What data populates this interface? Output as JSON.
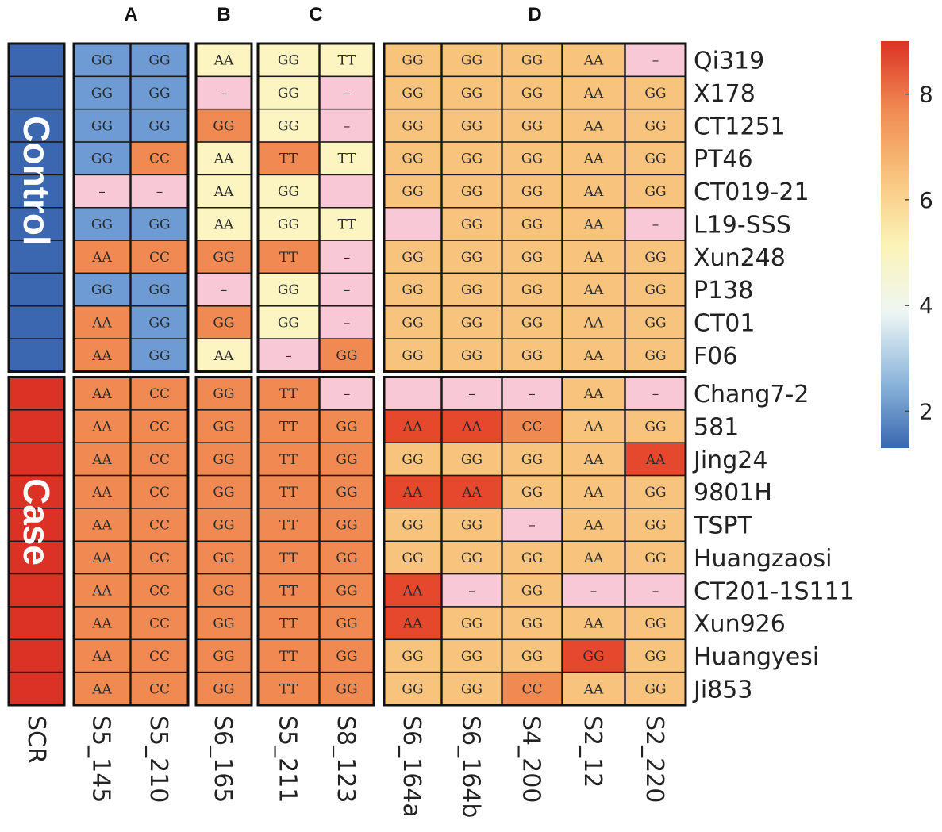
{
  "colors": {
    "blue": "#6f9bd4",
    "orange": "#f08a52",
    "yellow": "#fcf5c2",
    "pink": "#f9c8d6",
    "peach": "#f8c47d",
    "red": "#e5482d",
    "control": "#3a67b0",
    "case": "#dc3226"
  },
  "chart_data": {
    "type": "heatmap",
    "groups": [
      {
        "label": "A",
        "columns": [
          "S5_145",
          "S5_210"
        ]
      },
      {
        "label": "B",
        "columns": [
          "S6_165"
        ]
      },
      {
        "label": "C",
        "columns": [
          "S5_211",
          "S8_123"
        ]
      },
      {
        "label": "D",
        "columns": [
          "S6_164a",
          "S6_164b",
          "S4_200",
          "S2_12",
          "S2_220"
        ]
      }
    ],
    "scr_label": "SCR",
    "row_groups": [
      {
        "label": "Control",
        "rows": 10,
        "color": "control"
      },
      {
        "label": "Case",
        "rows": 10,
        "color": "case"
      }
    ],
    "rows": [
      {
        "name": "Qi319",
        "cells": [
          [
            "GG",
            "blue"
          ],
          [
            "GG",
            "blue"
          ],
          [
            "AA",
            "yellow"
          ],
          [
            "GG",
            "yellow"
          ],
          [
            "TT",
            "yellow"
          ],
          [
            "GG",
            "peach"
          ],
          [
            "GG",
            "peach"
          ],
          [
            "GG",
            "peach"
          ],
          [
            "AA",
            "peach"
          ],
          [
            "–",
            "pink"
          ]
        ]
      },
      {
        "name": "X178",
        "cells": [
          [
            "GG",
            "blue"
          ],
          [
            "GG",
            "blue"
          ],
          [
            "–",
            "pink"
          ],
          [
            "GG",
            "yellow"
          ],
          [
            "–",
            "pink"
          ],
          [
            "GG",
            "peach"
          ],
          [
            "GG",
            "peach"
          ],
          [
            "GG",
            "peach"
          ],
          [
            "AA",
            "peach"
          ],
          [
            "GG",
            "peach"
          ]
        ]
      },
      {
        "name": "CT1251",
        "cells": [
          [
            "GG",
            "blue"
          ],
          [
            "GG",
            "blue"
          ],
          [
            "GG",
            "orange"
          ],
          [
            "GG",
            "yellow"
          ],
          [
            "–",
            "pink"
          ],
          [
            "GG",
            "peach"
          ],
          [
            "GG",
            "peach"
          ],
          [
            "GG",
            "peach"
          ],
          [
            "AA",
            "peach"
          ],
          [
            "GG",
            "peach"
          ]
        ]
      },
      {
        "name": "PT46",
        "cells": [
          [
            "GG",
            "blue"
          ],
          [
            "CC",
            "orange"
          ],
          [
            "AA",
            "yellow"
          ],
          [
            "TT",
            "orange"
          ],
          [
            "TT",
            "yellow"
          ],
          [
            "GG",
            "peach"
          ],
          [
            "GG",
            "peach"
          ],
          [
            "GG",
            "peach"
          ],
          [
            "AA",
            "peach"
          ],
          [
            "GG",
            "peach"
          ]
        ]
      },
      {
        "name": "CT019-21",
        "cells": [
          [
            "–",
            "pink"
          ],
          [
            "–",
            "pink"
          ],
          [
            "AA",
            "yellow"
          ],
          [
            "GG",
            "yellow"
          ],
          [
            "",
            "pink"
          ],
          [
            "GG",
            "peach"
          ],
          [
            "GG",
            "peach"
          ],
          [
            "GG",
            "peach"
          ],
          [
            "AA",
            "peach"
          ],
          [
            "GG",
            "peach"
          ]
        ]
      },
      {
        "name": "L19-SSS",
        "cells": [
          [
            "GG",
            "blue"
          ],
          [
            "GG",
            "blue"
          ],
          [
            "AA",
            "yellow"
          ],
          [
            "GG",
            "yellow"
          ],
          [
            "TT",
            "yellow"
          ],
          [
            "",
            "pink"
          ],
          [
            "GG",
            "peach"
          ],
          [
            "GG",
            "peach"
          ],
          [
            "AA",
            "peach"
          ],
          [
            "–",
            "pink"
          ]
        ]
      },
      {
        "name": "Xun248",
        "cells": [
          [
            "AA",
            "orange"
          ],
          [
            "CC",
            "orange"
          ],
          [
            "GG",
            "orange"
          ],
          [
            "TT",
            "orange"
          ],
          [
            "–",
            "pink"
          ],
          [
            "GG",
            "peach"
          ],
          [
            "GG",
            "peach"
          ],
          [
            "GG",
            "peach"
          ],
          [
            "AA",
            "peach"
          ],
          [
            "GG",
            "peach"
          ]
        ]
      },
      {
        "name": "P138",
        "cells": [
          [
            "GG",
            "blue"
          ],
          [
            "GG",
            "blue"
          ],
          [
            "–",
            "pink"
          ],
          [
            "GG",
            "yellow"
          ],
          [
            "–",
            "pink"
          ],
          [
            "GG",
            "peach"
          ],
          [
            "GG",
            "peach"
          ],
          [
            "GG",
            "peach"
          ],
          [
            "AA",
            "peach"
          ],
          [
            "GG",
            "peach"
          ]
        ]
      },
      {
        "name": "CT01",
        "cells": [
          [
            "AA",
            "orange"
          ],
          [
            "GG",
            "blue"
          ],
          [
            "GG",
            "orange"
          ],
          [
            "GG",
            "yellow"
          ],
          [
            "–",
            "pink"
          ],
          [
            "GG",
            "peach"
          ],
          [
            "GG",
            "peach"
          ],
          [
            "GG",
            "peach"
          ],
          [
            "AA",
            "peach"
          ],
          [
            "GG",
            "peach"
          ]
        ]
      },
      {
        "name": "F06",
        "cells": [
          [
            "AA",
            "orange"
          ],
          [
            "GG",
            "blue"
          ],
          [
            "AA",
            "yellow"
          ],
          [
            "–",
            "pink"
          ],
          [
            "GG",
            "orange"
          ],
          [
            "GG",
            "peach"
          ],
          [
            "GG",
            "peach"
          ],
          [
            "GG",
            "peach"
          ],
          [
            "AA",
            "peach"
          ],
          [
            "GG",
            "peach"
          ]
        ]
      },
      {
        "name": "Chang7-2",
        "cells": [
          [
            "AA",
            "orange"
          ],
          [
            "CC",
            "orange"
          ],
          [
            "GG",
            "orange"
          ],
          [
            "TT",
            "orange"
          ],
          [
            "–",
            "pink"
          ],
          [
            "",
            "pink"
          ],
          [
            "–",
            "pink"
          ],
          [
            "–",
            "pink"
          ],
          [
            "AA",
            "peach"
          ],
          [
            "–",
            "pink"
          ]
        ]
      },
      {
        "name": "581",
        "cells": [
          [
            "AA",
            "orange"
          ],
          [
            "CC",
            "orange"
          ],
          [
            "GG",
            "orange"
          ],
          [
            "TT",
            "orange"
          ],
          [
            "GG",
            "orange"
          ],
          [
            "AA",
            "red"
          ],
          [
            "AA",
            "red"
          ],
          [
            "CC",
            "orange"
          ],
          [
            "AA",
            "peach"
          ],
          [
            "GG",
            "peach"
          ]
        ]
      },
      {
        "name": "Jing24",
        "cells": [
          [
            "AA",
            "orange"
          ],
          [
            "CC",
            "orange"
          ],
          [
            "GG",
            "orange"
          ],
          [
            "TT",
            "orange"
          ],
          [
            "GG",
            "orange"
          ],
          [
            "GG",
            "peach"
          ],
          [
            "GG",
            "peach"
          ],
          [
            "GG",
            "peach"
          ],
          [
            "AA",
            "peach"
          ],
          [
            "AA",
            "red"
          ]
        ]
      },
      {
        "name": "9801H",
        "cells": [
          [
            "AA",
            "orange"
          ],
          [
            "CC",
            "orange"
          ],
          [
            "GG",
            "orange"
          ],
          [
            "TT",
            "orange"
          ],
          [
            "GG",
            "orange"
          ],
          [
            "AA",
            "red"
          ],
          [
            "AA",
            "red"
          ],
          [
            "GG",
            "peach"
          ],
          [
            "AA",
            "peach"
          ],
          [
            "GG",
            "peach"
          ]
        ]
      },
      {
        "name": "TSPT",
        "cells": [
          [
            "AA",
            "orange"
          ],
          [
            "CC",
            "orange"
          ],
          [
            "GG",
            "orange"
          ],
          [
            "TT",
            "orange"
          ],
          [
            "GG",
            "orange"
          ],
          [
            "GG",
            "peach"
          ],
          [
            "GG",
            "peach"
          ],
          [
            "–",
            "pink"
          ],
          [
            "AA",
            "peach"
          ],
          [
            "GG",
            "peach"
          ]
        ]
      },
      {
        "name": "Huangzaosi",
        "cells": [
          [
            "AA",
            "orange"
          ],
          [
            "CC",
            "orange"
          ],
          [
            "GG",
            "orange"
          ],
          [
            "TT",
            "orange"
          ],
          [
            "GG",
            "orange"
          ],
          [
            "GG",
            "peach"
          ],
          [
            "GG",
            "peach"
          ],
          [
            "GG",
            "peach"
          ],
          [
            "AA",
            "peach"
          ],
          [
            "GG",
            "peach"
          ]
        ]
      },
      {
        "name": "CT201-1S111",
        "cells": [
          [
            "AA",
            "orange"
          ],
          [
            "CC",
            "orange"
          ],
          [
            "GG",
            "orange"
          ],
          [
            "TT",
            "orange"
          ],
          [
            "GG",
            "orange"
          ],
          [
            "AA",
            "red"
          ],
          [
            "–",
            "pink"
          ],
          [
            "GG",
            "peach"
          ],
          [
            "–",
            "pink"
          ],
          [
            "–",
            "pink"
          ]
        ]
      },
      {
        "name": "Xun926",
        "cells": [
          [
            "AA",
            "orange"
          ],
          [
            "CC",
            "orange"
          ],
          [
            "GG",
            "orange"
          ],
          [
            "TT",
            "orange"
          ],
          [
            "GG",
            "orange"
          ],
          [
            "AA",
            "red"
          ],
          [
            "GG",
            "peach"
          ],
          [
            "GG",
            "peach"
          ],
          [
            "AA",
            "peach"
          ],
          [
            "GG",
            "peach"
          ]
        ]
      },
      {
        "name": "Huangyesi",
        "cells": [
          [
            "AA",
            "orange"
          ],
          [
            "CC",
            "orange"
          ],
          [
            "GG",
            "orange"
          ],
          [
            "TT",
            "orange"
          ],
          [
            "GG",
            "orange"
          ],
          [
            "GG",
            "peach"
          ],
          [
            "GG",
            "peach"
          ],
          [
            "GG",
            "peach"
          ],
          [
            "GG",
            "red"
          ],
          [
            "GG",
            "peach"
          ]
        ]
      },
      {
        "name": "Ji853",
        "cells": [
          [
            "AA",
            "orange"
          ],
          [
            "CC",
            "orange"
          ],
          [
            "GG",
            "orange"
          ],
          [
            "TT",
            "orange"
          ],
          [
            "GG",
            "orange"
          ],
          [
            "GG",
            "peach"
          ],
          [
            "GG",
            "peach"
          ],
          [
            "CC",
            "orange"
          ],
          [
            "AA",
            "peach"
          ],
          [
            "GG",
            "peach"
          ]
        ]
      }
    ],
    "legend": {
      "range": [
        1.3,
        9.0
      ],
      "ticks": [
        2,
        4,
        6,
        8
      ],
      "stops": [
        "#3a67b0",
        "#8fb8dc",
        "#eef6f4",
        "#fbf3b8",
        "#f8c47d",
        "#f08a52",
        "#dc3226"
      ]
    }
  }
}
